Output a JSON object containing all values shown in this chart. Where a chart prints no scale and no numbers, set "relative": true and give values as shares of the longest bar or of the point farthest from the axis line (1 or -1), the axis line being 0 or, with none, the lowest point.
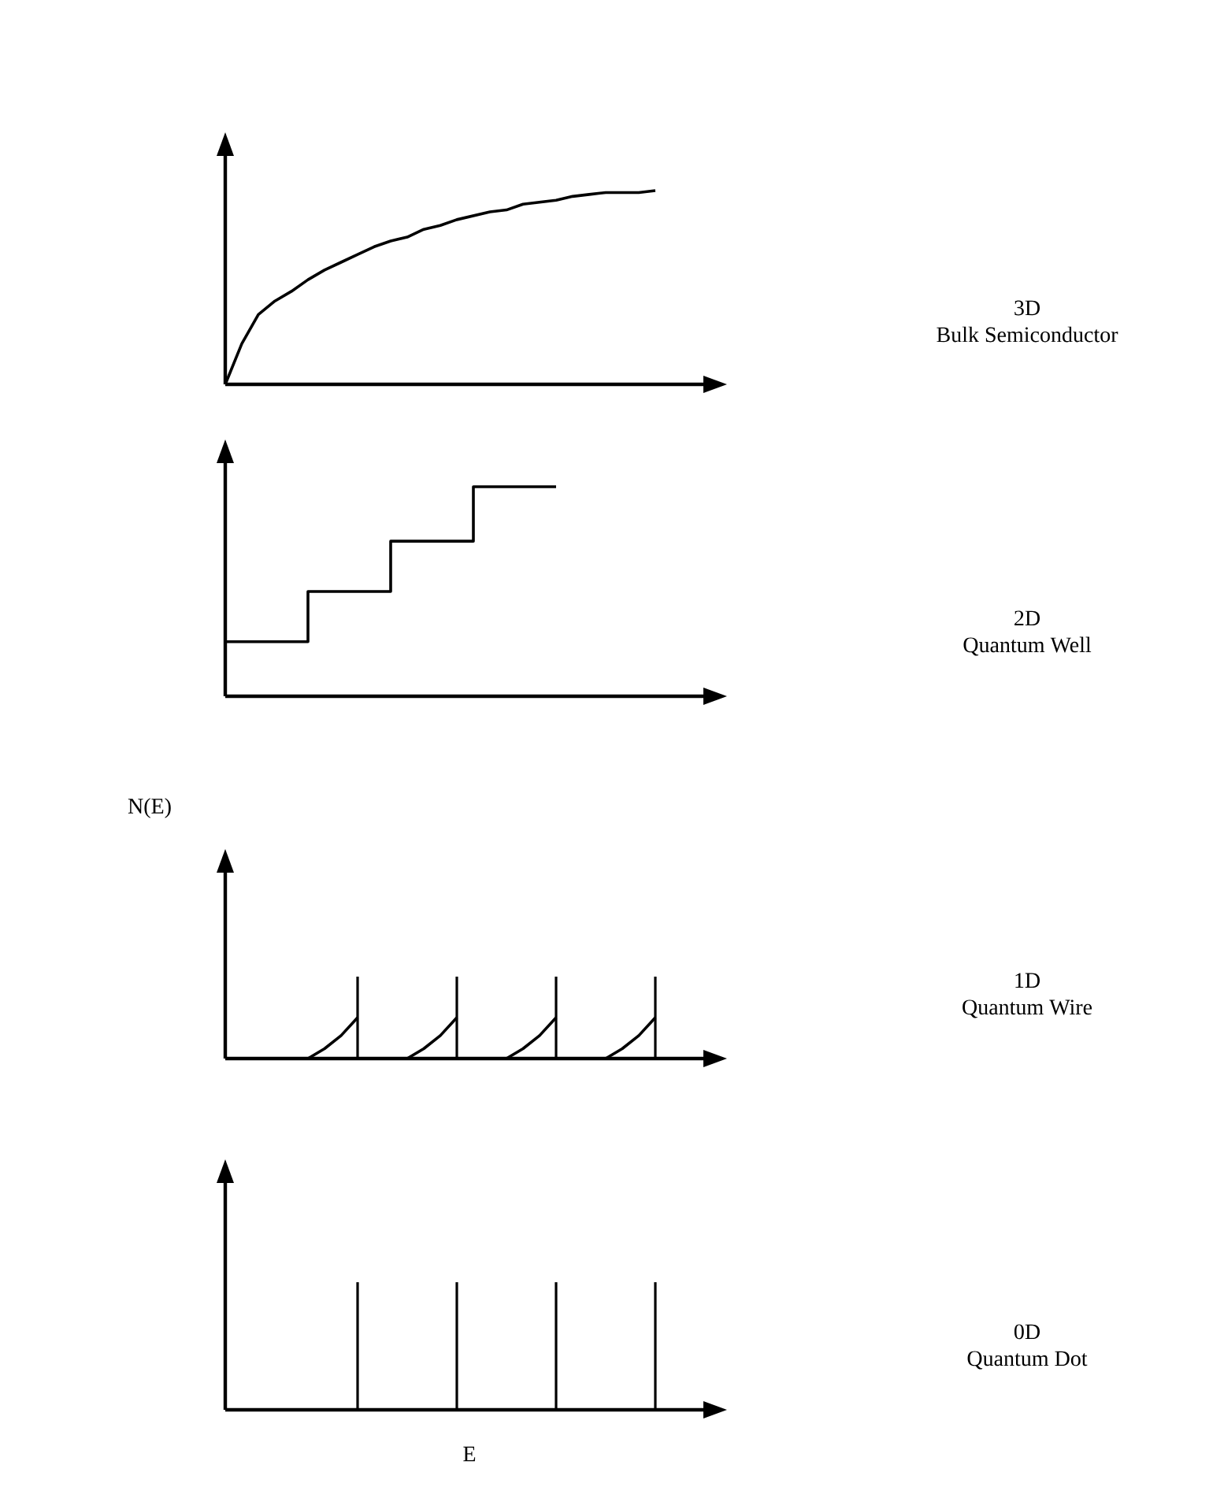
{
  "chart_data": [
    {
      "type": "line",
      "annotations": [
        "3D",
        "Bulk Semiconductor"
      ],
      "relative": true,
      "categories": [
        null,
        null,
        null,
        null,
        null,
        null,
        null,
        null,
        null,
        null,
        null,
        null,
        null,
        null,
        null,
        null,
        null,
        null,
        null,
        null,
        null,
        null,
        null,
        null,
        null,
        null,
        null,
        null,
        null
      ],
      "series": [
        {
          "color": "#000000",
          "values": [
            0,
            0.21,
            0.36,
            0.43,
            0.48,
            0.54,
            0.59,
            0.63,
            0.67,
            0.71,
            0.74,
            0.76,
            0.8,
            0.82,
            0.85,
            0.87,
            0.89,
            0.9,
            0.93,
            0.94,
            0.95,
            0.97,
            0.98,
            0.99,
            0.99,
            0.99,
            1.0,
            null,
            null
          ]
        }
      ]
    },
    {
      "type": "step",
      "annotations": [
        "2D",
        "Quantum Well"
      ],
      "relative": true,
      "categories": [
        null,
        null,
        null,
        null,
        null,
        null,
        null,
        null,
        null,
        null,
        null,
        null,
        null,
        null,
        null,
        null,
        null,
        null,
        null,
        null,
        null,
        null,
        null,
        null,
        null,
        null,
        null,
        null,
        null
      ],
      "series": [
        {
          "color": "#000000",
          "values": [
            0.26,
            0.26,
            0.26,
            0.26,
            0.26,
            0.5,
            0.5,
            0.5,
            0.5,
            0.5,
            0.74,
            0.74,
            0.74,
            0.74,
            0.74,
            1.0,
            1.0,
            1.0,
            1.0,
            1.0,
            1.0,
            null,
            null,
            null,
            null,
            null,
            null,
            null,
            null
          ]
        }
      ]
    },
    {
      "type": "line",
      "annotations": [
        "1D",
        "Quantum Wire"
      ],
      "ylabel": "N(E)",
      "relative": true,
      "categories": [
        null,
        null,
        null,
        null,
        null,
        null,
        null,
        null,
        null,
        null,
        null,
        null,
        null,
        null,
        null,
        null,
        null,
        null,
        null,
        null,
        null,
        null,
        null,
        null,
        null,
        null,
        null,
        null,
        null
      ],
      "series": [
        {
          "color": "#000000",
          "values": [
            null,
            null,
            null,
            null,
            null,
            0,
            0.12,
            0.28,
            0.5,
            null,
            null,
            0,
            0.12,
            0.28,
            0.5,
            null,
            null,
            0,
            0.12,
            0.28,
            0.5,
            null,
            null,
            0,
            0.12,
            0.28,
            0.5,
            null,
            null
          ]
        },
        {
          "type": "bar",
          "color": "#000000",
          "values": [
            null,
            null,
            null,
            null,
            null,
            null,
            null,
            null,
            1,
            null,
            null,
            null,
            null,
            null,
            1,
            null,
            null,
            null,
            null,
            null,
            1,
            null,
            null,
            null,
            null,
            null,
            1,
            null,
            null
          ]
        }
      ]
    },
    {
      "type": "bar",
      "annotations": [
        "0D",
        "Quantum Dot"
      ],
      "xlabel": "E",
      "relative": true,
      "categories": [
        null,
        null,
        null,
        null,
        null,
        null,
        null,
        null,
        null,
        null,
        null,
        null,
        null,
        null,
        null,
        null,
        null,
        null,
        null,
        null,
        null,
        null,
        null,
        null,
        null,
        null,
        null,
        null,
        null
      ],
      "series": [
        {
          "color": "#000000",
          "values": [
            null,
            null,
            null,
            null,
            null,
            null,
            null,
            null,
            1,
            null,
            null,
            null,
            null,
            null,
            1,
            null,
            null,
            null,
            null,
            null,
            1,
            null,
            null,
            null,
            null,
            null,
            1,
            null,
            null
          ]
        }
      ]
    }
  ]
}
